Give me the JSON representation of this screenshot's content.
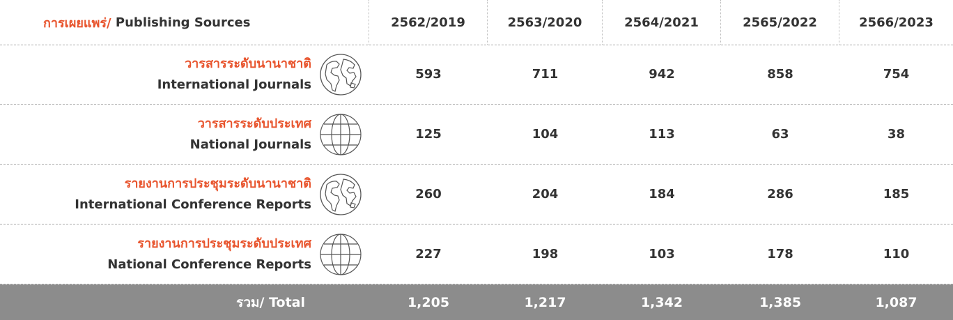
{
  "header": {
    "title_thai": "การเผยแพร่/",
    "title_english": "Publishing Sources",
    "years": [
      "2562/2019",
      "2563/2020",
      "2564/2021",
      "2565/2022",
      "2566/2023"
    ]
  },
  "table": {
    "rows": [
      {
        "thai": "วารสารระดับนานาชาติ",
        "english": "International Journals",
        "values": [
          "593",
          "711",
          "942",
          "858",
          "754"
        ]
      },
      {
        "thai": "วารสารระดับประเทศ",
        "english": "National Journals",
        "values": [
          "125",
          "104",
          "113",
          "63",
          "38"
        ]
      },
      {
        "thai": "รายงานการประชุมระดับนานาชาติ",
        "english": "International Conference Reports",
        "values": [
          "260",
          "204",
          "184",
          "286",
          "185"
        ]
      },
      {
        "thai": "รายงานการประชุมระดับประเทศ",
        "english": "National Conference Reports",
        "values": [
          "227",
          "198",
          "103",
          "178",
          "110"
        ]
      }
    ]
  },
  "total": {
    "label": "รวม/ Total",
    "values": [
      "1,205",
      "1,217",
      "1,342",
      "1,385",
      "1,087"
    ]
  }
}
